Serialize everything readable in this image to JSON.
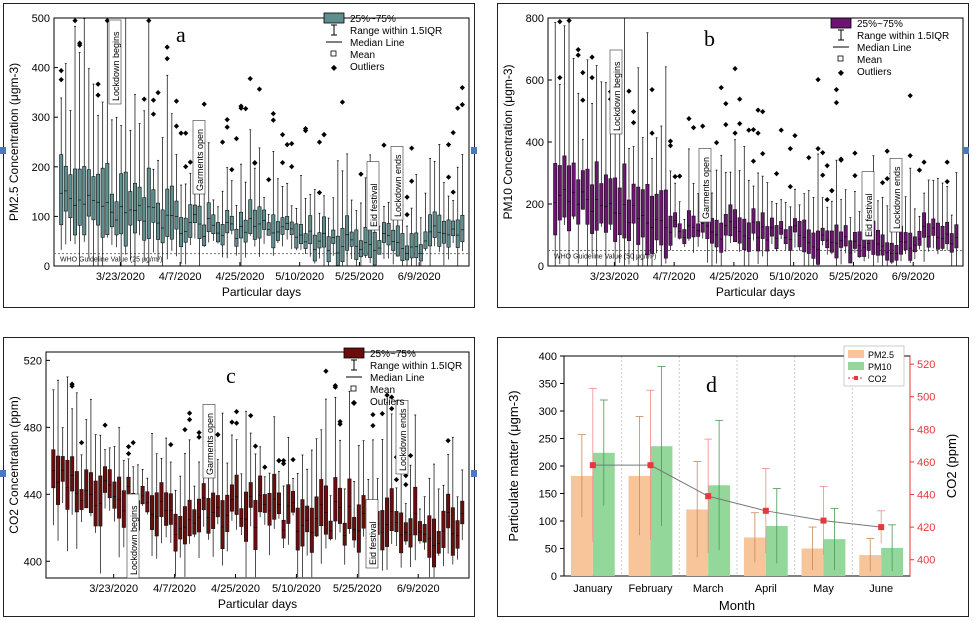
{
  "chart_data": [
    {
      "type": "box",
      "panel_label": "a",
      "ylabel_html": "PM<tspan baseline-shift='sub' font-size='8'>2.5</tspan> Concentration (μgm<tspan baseline-shift='super' font-size='8'>-3</tspan>)",
      "ylabel_plain": "PM2.5 Concentration (μgm-3)",
      "xlabel": "Particular days",
      "yticks": [
        0,
        100,
        200,
        300,
        400,
        500
      ],
      "ylim": [
        0,
        500
      ],
      "xticks": [
        "3/23/2020",
        "4/7/2020",
        "4/25/2020",
        "5/10/2020",
        "5/25/2020",
        "6/9/2020"
      ],
      "color": "#5e8e8e",
      "guideline": {
        "value": 25,
        "label": "WHO Guideline Value (25 μg/m³)"
      },
      "annotations": [
        "Lockdown begins",
        "Garments open",
        "Eid festival",
        "Lockdown ends"
      ],
      "legend": [
        "25%~75%",
        "Range within 1.5IQR",
        "Median Line",
        "Mean",
        "Outliers"
      ],
      "boxes_approx": {
        "days": 88,
        "median_range": [
          30,
          140
        ],
        "peak_outlier": 500
      }
    },
    {
      "type": "box",
      "panel_label": "b",
      "ylabel_plain": "PM10 Concentration (μgm-3)",
      "xlabel": "Particular days",
      "yticks": [
        0,
        200,
        400,
        600,
        800
      ],
      "ylim": [
        0,
        800
      ],
      "xticks": [
        "3/23/2020",
        "4/7/2020",
        "4/25/2020",
        "5/10/2020",
        "5/25/2020",
        "6/9/2020"
      ],
      "color": "#6b1470",
      "guideline": {
        "value": 50,
        "label": "WHO Guideline Value (50 μg/m³)"
      },
      "annotations": [
        "Lockdown begins",
        "Garments open",
        "Eid festival",
        "Lockdown ends"
      ],
      "legend": [
        "25%~75%",
        "Range within 1.5IQR",
        "Median Line",
        "Mean",
        "Outliers"
      ]
    },
    {
      "type": "box",
      "panel_label": "c",
      "ylabel_plain": "CO2 Concentration (ppm)",
      "xlabel": "Particular days",
      "yticks": [
        400,
        440,
        480,
        520
      ],
      "ylim": [
        390,
        525
      ],
      "xticks": [
        "3/23/2020",
        "4/7/2020",
        "4/25/2020",
        "5/10/2020",
        "5/25/2020",
        "6/9/2020"
      ],
      "color": "#6b0d0d",
      "annotations": [
        "Lockdown begins",
        "Garments open",
        "Eid festival",
        "Lockdown ends"
      ],
      "legend": [
        "25%~75%",
        "Range within 1.5IQR",
        "Median Line",
        "Mean",
        "Outliers"
      ]
    },
    {
      "type": "bar",
      "panel_label": "d",
      "categories": [
        "January",
        "February",
        "March",
        "April",
        "May",
        "June"
      ],
      "series": [
        {
          "name": "PM2.5",
          "values": [
            182,
            182,
            121,
            70,
            50,
            38
          ],
          "errors": [
            75,
            108,
            87,
            45,
            39,
            30
          ],
          "color": "#f8c49a"
        },
        {
          "name": "PM10",
          "values": [
            224,
            236,
            165,
            91,
            67,
            51
          ],
          "errors": [
            96,
            145,
            118,
            68,
            56,
            42
          ],
          "color": "#93d89a"
        },
        {
          "name": "CO2",
          "values": [
            458,
            458,
            439,
            430,
            424,
            420
          ],
          "errors": [
            47,
            46,
            35,
            26,
            21,
            10
          ],
          "color": "#e8363a",
          "axis": "right"
        }
      ],
      "xlabel": "Month",
      "ylabel": "Particulate matter (μgm-3)",
      "y2label": "CO2 (ppm)",
      "ylim": [
        0,
        400
      ],
      "yticks": [
        0,
        50,
        100,
        150,
        200,
        250,
        300,
        350,
        400
      ],
      "y2lim": [
        390,
        525
      ],
      "y2ticks": [
        400,
        420,
        440,
        460,
        480,
        500,
        520
      ],
      "legend": [
        "PM2.5",
        "PM10",
        "CO2"
      ]
    }
  ]
}
